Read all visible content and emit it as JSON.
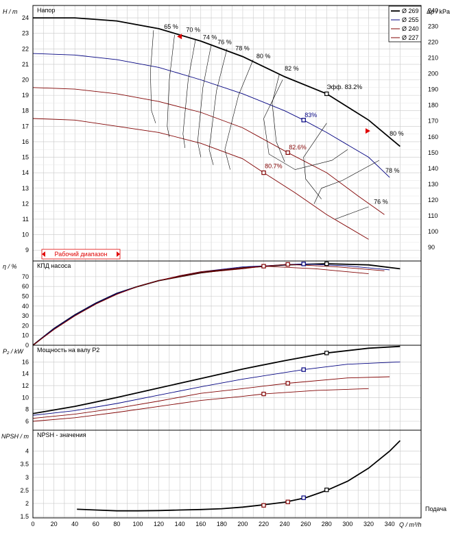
{
  "chart_data": [
    {
      "type": "line",
      "title": "Напор",
      "ylabel": "H / m",
      "y2label": "Δp / kPa",
      "xlim": [
        0,
        370
      ],
      "ylim": [
        8.3,
        24.8
      ],
      "y2lim": [
        81.4,
        243.2
      ],
      "yticks": [
        9,
        10,
        11,
        12,
        13,
        14,
        15,
        16,
        17,
        18,
        19,
        20,
        21,
        22,
        23,
        24
      ],
      "y2ticks": [
        90,
        100,
        110,
        120,
        130,
        140,
        150,
        160,
        170,
        180,
        190,
        200,
        210,
        220,
        230,
        240
      ],
      "legend": [
        "Ø 269",
        "Ø 255",
        "Ø 240",
        "Ø 227"
      ],
      "legend_position": "top-right",
      "working_range_label": "Рабочий диапазон",
      "series": [
        {
          "name": "Ø 269",
          "color": "#000000",
          "points": [
            [
              0,
              24.0
            ],
            [
              40,
              24.0
            ],
            [
              80,
              23.8
            ],
            [
              120,
              23.3
            ],
            [
              160,
              22.5
            ],
            [
              200,
              21.5
            ],
            [
              240,
              20.2
            ],
            [
              280,
              19.1
            ],
            [
              320,
              17.4
            ],
            [
              350,
              15.7
            ]
          ]
        },
        {
          "name": "Ø 255",
          "color": "#000080",
          "points": [
            [
              0,
              21.7
            ],
            [
              40,
              21.6
            ],
            [
              80,
              21.3
            ],
            [
              120,
              20.8
            ],
            [
              160,
              20.0
            ],
            [
              200,
              19.1
            ],
            [
              240,
              18.0
            ],
            [
              258,
              17.4
            ],
            [
              280,
              16.6
            ],
            [
              320,
              15.0
            ],
            [
              340,
              13.7
            ]
          ]
        },
        {
          "name": "Ø 240",
          "color": "#800000",
          "points": [
            [
              0,
              19.5
            ],
            [
              40,
              19.4
            ],
            [
              80,
              19.1
            ],
            [
              120,
              18.6
            ],
            [
              160,
              17.9
            ],
            [
              200,
              16.9
            ],
            [
              243,
              15.3
            ],
            [
              280,
              14.0
            ],
            [
              310,
              12.5
            ],
            [
              335,
              11.3
            ]
          ]
        },
        {
          "name": "Ø 227",
          "color": "#800000",
          "points": [
            [
              0,
              17.5
            ],
            [
              40,
              17.4
            ],
            [
              80,
              17.0
            ],
            [
              120,
              16.6
            ],
            [
              160,
              15.9
            ],
            [
              200,
              14.9
            ],
            [
              220,
              14.0
            ],
            [
              250,
              12.7
            ],
            [
              280,
              11.3
            ],
            [
              320,
              9.7
            ]
          ]
        }
      ],
      "efficiency_labels": [
        "65 %",
        "70 %",
        "74 %",
        "76 %",
        "78 %",
        "80 %",
        "82 %",
        "80 %",
        "78 %",
        "76 %"
      ],
      "point_labels": [
        "Эфф.  83.2%",
        "83%",
        "82.6%",
        "80.7%"
      ]
    },
    {
      "type": "line",
      "title": "КПД насоса",
      "ylabel": "η / %",
      "ylim": [
        0,
        86
      ],
      "yticks": [
        0,
        10,
        20,
        30,
        40,
        50,
        60,
        70
      ],
      "series": [
        {
          "name": "Ø 269",
          "color": "#000000",
          "points": [
            [
              0,
              0
            ],
            [
              20,
              17
            ],
            [
              40,
              31
            ],
            [
              60,
              43
            ],
            [
              80,
              53
            ],
            [
              100,
              60
            ],
            [
              120,
              66
            ],
            [
              140,
              70
            ],
            [
              160,
              74
            ],
            [
              200,
              79
            ],
            [
              240,
              82
            ],
            [
              280,
              83.2
            ],
            [
              320,
              82
            ],
            [
              350,
              78
            ]
          ]
        },
        {
          "name": "Ø 255",
          "color": "#000080",
          "points": [
            [
              0,
              0
            ],
            [
              20,
              17
            ],
            [
              40,
              31
            ],
            [
              60,
              43
            ],
            [
              80,
              53
            ],
            [
              100,
              60
            ],
            [
              120,
              66
            ],
            [
              140,
              71
            ],
            [
              160,
              75
            ],
            [
              200,
              80
            ],
            [
              258,
              83
            ],
            [
              300,
              81
            ],
            [
              340,
              77
            ]
          ]
        },
        {
          "name": "Ø 240",
          "color": "#800000",
          "points": [
            [
              0,
              0
            ],
            [
              20,
              16
            ],
            [
              40,
              30
            ],
            [
              60,
              42
            ],
            [
              80,
              52
            ],
            [
              100,
              60
            ],
            [
              120,
              66
            ],
            [
              140,
              71
            ],
            [
              160,
              75
            ],
            [
              200,
              79
            ],
            [
              243,
              82.6
            ],
            [
              290,
              80
            ],
            [
              335,
              76
            ]
          ]
        },
        {
          "name": "Ø 227",
          "color": "#800000",
          "points": [
            [
              0,
              0
            ],
            [
              20,
              16
            ],
            [
              40,
              30
            ],
            [
              60,
              42
            ],
            [
              80,
              52
            ],
            [
              100,
              60
            ],
            [
              120,
              66
            ],
            [
              140,
              70
            ],
            [
              160,
              74
            ],
            [
              200,
              78
            ],
            [
              220,
              80.7
            ],
            [
              270,
              78
            ],
            [
              320,
              73
            ]
          ]
        }
      ]
    },
    {
      "type": "line",
      "title": "Мощность на валу P2",
      "ylabel": "P₂ / kW",
      "ylim": [
        4.5,
        18.8
      ],
      "yticks": [
        6,
        8,
        10,
        12,
        14,
        16
      ],
      "series": [
        {
          "name": "Ø 269",
          "color": "#000000",
          "points": [
            [
              0,
              7.3
            ],
            [
              40,
              8.5
            ],
            [
              80,
              10.0
            ],
            [
              120,
              11.6
            ],
            [
              160,
              13.2
            ],
            [
              200,
              14.8
            ],
            [
              240,
              16.2
            ],
            [
              280,
              17.5
            ],
            [
              320,
              18.3
            ],
            [
              350,
              18.6
            ]
          ]
        },
        {
          "name": "Ø 255",
          "color": "#000080",
          "points": [
            [
              0,
              7.0
            ],
            [
              40,
              7.8
            ],
            [
              80,
              9.0
            ],
            [
              120,
              10.4
            ],
            [
              160,
              11.8
            ],
            [
              200,
              13.1
            ],
            [
              258,
              14.7
            ],
            [
              300,
              15.6
            ],
            [
              350,
              16.0
            ]
          ]
        },
        {
          "name": "Ø 240",
          "color": "#800000",
          "points": [
            [
              0,
              6.5
            ],
            [
              40,
              7.2
            ],
            [
              80,
              8.2
            ],
            [
              120,
              9.4
            ],
            [
              160,
              10.7
            ],
            [
              200,
              11.5
            ],
            [
              243,
              12.4
            ],
            [
              300,
              13.3
            ],
            [
              340,
              13.5
            ]
          ]
        },
        {
          "name": "Ø 227",
          "color": "#800000",
          "points": [
            [
              0,
              6.0
            ],
            [
              40,
              6.6
            ],
            [
              80,
              7.5
            ],
            [
              120,
              8.5
            ],
            [
              160,
              9.5
            ],
            [
              200,
              10.2
            ],
            [
              220,
              10.6
            ],
            [
              270,
              11.2
            ],
            [
              320,
              11.5
            ]
          ]
        }
      ]
    },
    {
      "type": "line",
      "title": "NPSH - значения",
      "ylabel": "NPSH / m",
      "xlabel": "Q / m³/h",
      "x_caption": "Подача",
      "ylim": [
        1.45,
        4.8
      ],
      "yticks": [
        1.5,
        2,
        2.5,
        3,
        3.5,
        4
      ],
      "xticks": [
        0,
        10,
        20,
        30,
        40,
        50,
        60,
        70,
        80,
        90,
        100,
        110,
        120,
        130,
        140,
        150,
        160,
        170,
        180,
        190,
        200,
        210,
        220,
        230,
        240,
        250,
        260,
        270,
        280,
        290,
        300,
        310,
        320,
        330,
        340,
        350
      ],
      "series": [
        {
          "name": "Ø 269",
          "color": "#000000",
          "points": [
            [
              42,
              1.78
            ],
            [
              60,
              1.75
            ],
            [
              80,
              1.72
            ],
            [
              100,
              1.72
            ],
            [
              120,
              1.73
            ],
            [
              140,
              1.75
            ],
            [
              160,
              1.77
            ],
            [
              180,
              1.8
            ],
            [
              200,
              1.86
            ],
            [
              220,
              1.95
            ],
            [
              240,
              2.05
            ],
            [
              260,
              2.22
            ],
            [
              280,
              2.5
            ],
            [
              300,
              2.85
            ],
            [
              320,
              3.35
            ],
            [
              340,
              4.0
            ],
            [
              350,
              4.4
            ]
          ]
        }
      ],
      "markers": [
        [
          220,
          1.93
        ],
        [
          243,
          2.06
        ],
        [
          258,
          2.22
        ],
        [
          280,
          2.52
        ]
      ]
    }
  ]
}
